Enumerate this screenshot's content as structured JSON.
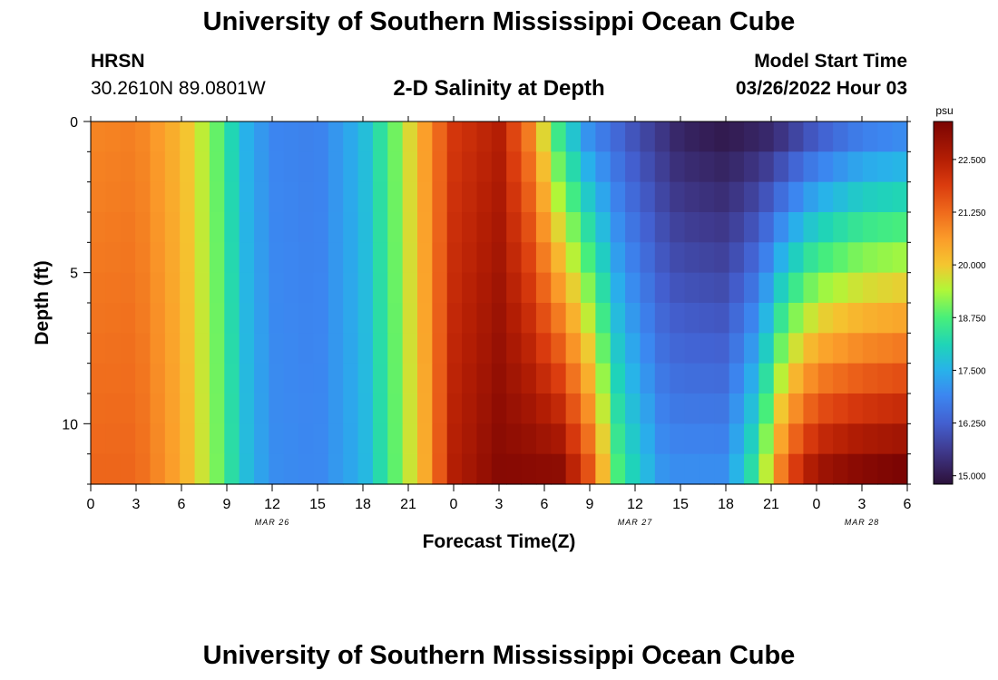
{
  "header": {
    "main_title": "University of Southern Mississippi Ocean Cube",
    "station_id": "HRSN",
    "station_coords": "30.2610N  89.0801W",
    "chart_title": "2-D Salinity at Depth",
    "model_start_label": "Model Start Time",
    "model_start_value": "03/26/2022 Hour 03"
  },
  "footer": {
    "main_title": "University of Southern Mississippi Ocean Cube"
  },
  "chart_data": {
    "type": "heatmap",
    "title": "2-D Salinity at Depth",
    "xlabel": "Forecast Time(Z)",
    "ylabel": "Depth (ft)",
    "x_hours_range": [
      0,
      54
    ],
    "x_tick_step_hours": 3,
    "x_tick_labels": [
      "0",
      "3",
      "6",
      "9",
      "12",
      "15",
      "18",
      "21",
      "0",
      "3",
      "6",
      "9",
      "12",
      "15",
      "18",
      "21",
      "0",
      "3",
      "6"
    ],
    "date_labels": [
      {
        "hour": 12,
        "text": "MAR 26"
      },
      {
        "hour": 36,
        "text": "MAR 27"
      },
      {
        "hour": 51,
        "text": "MAR 28"
      }
    ],
    "y_ticks": [
      0,
      5,
      10
    ],
    "y_range": [
      0,
      12
    ],
    "depth_levels": 12,
    "depth_band_ft": 1,
    "time_columns": 55,
    "colorbar": {
      "unit": "psu",
      "min": 14.8,
      "max": 23.4,
      "ticks": [
        "15.000",
        "16.250",
        "17.500",
        "18.750",
        "20.000",
        "21.250",
        "22.500"
      ],
      "stops": [
        {
          "v": 14.8,
          "c": "#2a123a"
        },
        {
          "v": 15.0,
          "c": "#321a4e"
        },
        {
          "v": 15.6,
          "c": "#3f3a8e"
        },
        {
          "v": 16.25,
          "c": "#4360d0"
        },
        {
          "v": 16.9,
          "c": "#3c86f0"
        },
        {
          "v": 17.5,
          "c": "#28b2ea"
        },
        {
          "v": 18.1,
          "c": "#1fd4b8"
        },
        {
          "v": 18.75,
          "c": "#48ef7a"
        },
        {
          "v": 19.4,
          "c": "#b0f738"
        },
        {
          "v": 20.0,
          "c": "#f4c630"
        },
        {
          "v": 20.6,
          "c": "#fb9d2a"
        },
        {
          "v": 21.25,
          "c": "#ef6a1c"
        },
        {
          "v": 21.9,
          "c": "#da3b0e"
        },
        {
          "v": 22.5,
          "c": "#b41e04"
        },
        {
          "v": 23.4,
          "c": "#7a0403"
        }
      ]
    },
    "surface_profile": [
      {
        "hour": 0,
        "salinity": 20.9
      },
      {
        "hour": 3,
        "salinity": 21.0
      },
      {
        "hour": 6,
        "salinity": 20.2
      },
      {
        "hour": 8,
        "salinity": 19.2
      },
      {
        "hour": 10,
        "salinity": 17.6
      },
      {
        "hour": 12,
        "salinity": 16.9
      },
      {
        "hour": 15,
        "salinity": 16.8
      },
      {
        "hour": 18,
        "salinity": 17.6
      },
      {
        "hour": 20,
        "salinity": 18.9
      },
      {
        "hour": 22,
        "salinity": 20.5
      },
      {
        "hour": 24,
        "salinity": 22.0
      },
      {
        "hour": 27,
        "salinity": 22.5
      },
      {
        "hour": 29,
        "salinity": 21.0
      },
      {
        "hour": 31,
        "salinity": 18.5
      },
      {
        "hour": 33,
        "salinity": 17.0
      },
      {
        "hour": 36,
        "salinity": 16.0
      },
      {
        "hour": 39,
        "salinity": 15.2
      },
      {
        "hour": 42,
        "salinity": 15.0
      },
      {
        "hour": 45,
        "salinity": 15.3
      },
      {
        "hour": 48,
        "salinity": 16.2
      },
      {
        "hour": 51,
        "salinity": 16.8
      },
      {
        "hour": 54,
        "salinity": 17.0
      }
    ],
    "bottom_profile": [
      {
        "hour": 0,
        "salinity": 21.3
      },
      {
        "hour": 3,
        "salinity": 21.3
      },
      {
        "hour": 6,
        "salinity": 20.4
      },
      {
        "hour": 8,
        "salinity": 19.3
      },
      {
        "hour": 10,
        "salinity": 17.8
      },
      {
        "hour": 12,
        "salinity": 17.0
      },
      {
        "hour": 15,
        "salinity": 16.9
      },
      {
        "hour": 18,
        "salinity": 17.5
      },
      {
        "hour": 20,
        "salinity": 18.8
      },
      {
        "hour": 22,
        "salinity": 20.3
      },
      {
        "hour": 24,
        "salinity": 22.5
      },
      {
        "hour": 27,
        "salinity": 23.2
      },
      {
        "hour": 31,
        "salinity": 23.1
      },
      {
        "hour": 33,
        "salinity": 21.5
      },
      {
        "hour": 35,
        "salinity": 18.5
      },
      {
        "hour": 38,
        "salinity": 17.0
      },
      {
        "hour": 42,
        "salinity": 17.0
      },
      {
        "hour": 44,
        "salinity": 18.5
      },
      {
        "hour": 46,
        "salinity": 21.5
      },
      {
        "hour": 48,
        "salinity": 22.8
      },
      {
        "hour": 51,
        "salinity": 23.2
      },
      {
        "hour": 54,
        "salinity": 23.4
      }
    ]
  }
}
